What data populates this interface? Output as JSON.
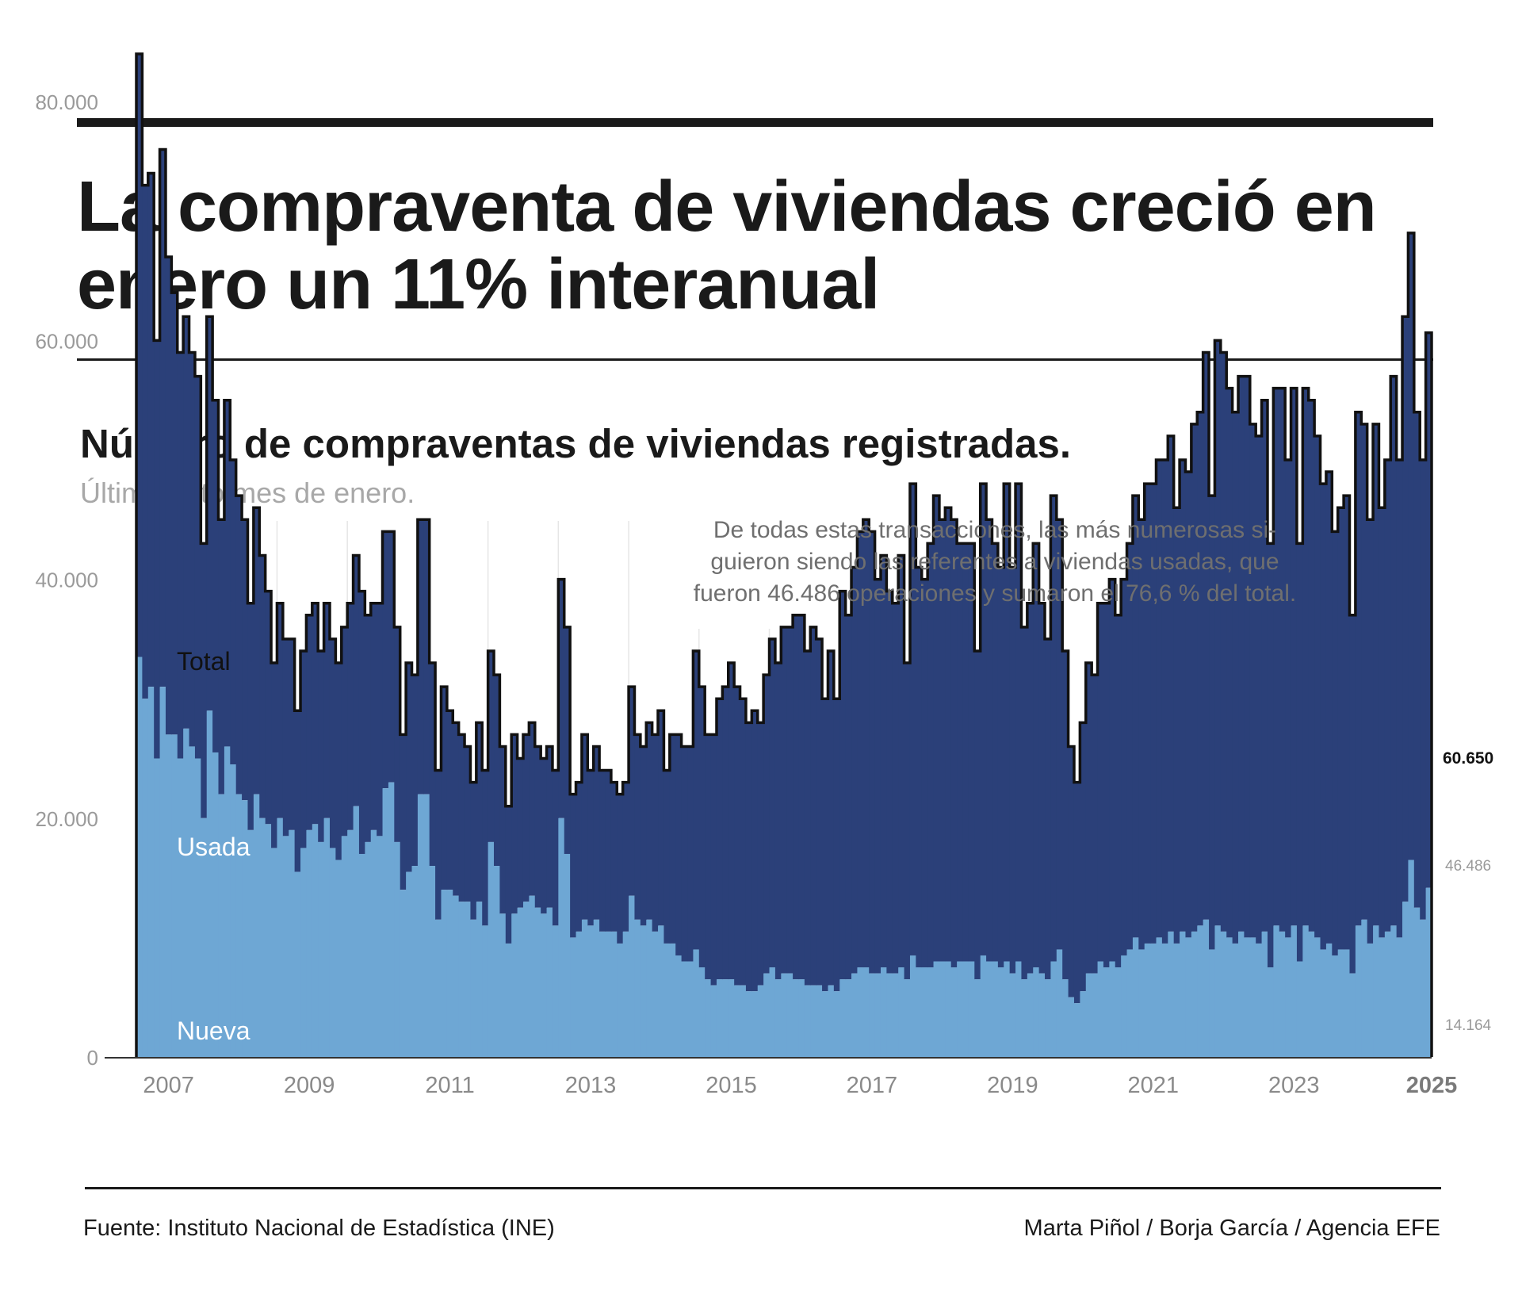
{
  "header": {
    "title": "La compraventa de viviendas creció en enero un 11% interanual",
    "subtitle": "Número de compraventas de viviendas registradas.",
    "subnote": "Último dato mes de enero."
  },
  "footer": {
    "source": "Fuente: Instituto Nacional de Estadística (INE)",
    "credits": "Marta Piñol / Borja García / Agencia EFE"
  },
  "colors": {
    "usada": "#2b4079",
    "nueva": "#6ea7d4",
    "outline": "#111111",
    "grid": "#e6e6e6",
    "axis_text": "#9a9a9a"
  },
  "chart_data": {
    "type": "area",
    "title": "Número de compraventas de viviendas registradas.",
    "subtitle": "Último dato mes de enero.",
    "x_unit": "month",
    "x_start": "2007-01",
    "x_end": "2025-01",
    "ylim": [
      0,
      90000
    ],
    "y_ticks": [
      {
        "value": 0,
        "label": "0"
      },
      {
        "value": 20000,
        "label": "20.000"
      },
      {
        "value": 40000,
        "label": "40.000"
      },
      {
        "value": 60000,
        "label": "60.000"
      },
      {
        "value": 80000,
        "label": "80.000"
      }
    ],
    "x_tick_labels": [
      "2007",
      "2009",
      "2011",
      "2013",
      "2015",
      "2017",
      "2019",
      "2021",
      "2023",
      "2025"
    ],
    "grid": "vertical",
    "series_labels": {
      "total": "Total",
      "usada": "Usada",
      "nueva": "Nueva"
    },
    "annotation": "De todas estas transacciones, las más numerosas si-\nguieron siendo las referentes a viviendas usadas, que\nfueron 46.486 operaciones y sumaron el 76,6 % del total.",
    "end_labels": {
      "total": "60.650",
      "usada": "46.486",
      "nueva": "14.164"
    },
    "series": [
      {
        "name": "Total",
        "values": [
          84000,
          73000,
          74000,
          60000,
          76000,
          67000,
          64000,
          59000,
          62000,
          59000,
          57000,
          43000,
          62000,
          55000,
          45000,
          55000,
          50000,
          47000,
          45000,
          38000,
          46000,
          42000,
          39000,
          33000,
          38000,
          35000,
          35000,
          29000,
          34000,
          37000,
          38000,
          34000,
          38000,
          35000,
          33000,
          36000,
          38000,
          42000,
          39000,
          37000,
          38000,
          38000,
          44000,
          44000,
          36000,
          27000,
          33000,
          32000,
          45000,
          45000,
          33000,
          24000,
          31000,
          29000,
          28000,
          27000,
          26000,
          23000,
          28000,
          24000,
          34000,
          32000,
          26000,
          21000,
          27000,
          25000,
          27000,
          28000,
          26000,
          25000,
          26000,
          24000,
          40000,
          36000,
          22000,
          23000,
          27000,
          24000,
          26000,
          24000,
          24000,
          23000,
          22000,
          23000,
          31000,
          27000,
          26000,
          28000,
          27000,
          29000,
          24000,
          27000,
          27000,
          26000,
          26000,
          34000,
          31000,
          27000,
          27000,
          30000,
          31000,
          33000,
          31000,
          30000,
          28000,
          29000,
          28000,
          32000,
          35000,
          33000,
          36000,
          36000,
          37000,
          37000,
          34000,
          36000,
          35000,
          30000,
          34000,
          30000,
          39000,
          37000,
          41000,
          44000,
          45000,
          44000,
          40000,
          42000,
          39000,
          38000,
          42000,
          33000,
          48000,
          41000,
          40000,
          43000,
          47000,
          45000,
          46000,
          45000,
          43000,
          43000,
          43000,
          34000,
          48000,
          45000,
          43000,
          41000,
          48000,
          41000,
          48000,
          36000,
          38000,
          43000,
          38000,
          35000,
          47000,
          45000,
          34000,
          26000,
          23000,
          28000,
          33000,
          32000,
          38000,
          38000,
          40000,
          37000,
          40000,
          43000,
          47000,
          45000,
          48000,
          48000,
          50000,
          50000,
          52000,
          46000,
          50000,
          49000,
          53000,
          54000,
          59000,
          47000,
          60000,
          59000,
          56000,
          54000,
          57000,
          57000,
          53000,
          52000,
          55000,
          43000,
          56000,
          56000,
          50000,
          56000,
          43000,
          56000,
          55000,
          52000,
          48000,
          49000,
          44000,
          46000,
          47000,
          37000,
          54000,
          53000,
          45000,
          53000,
          46000,
          50000,
          57000,
          50000,
          62000,
          69000,
          54000,
          50000,
          60650
        ]
      },
      {
        "name": "Nueva",
        "values": [
          33500,
          30000,
          31000,
          25000,
          31000,
          27000,
          27000,
          25000,
          27500,
          26000,
          25000,
          20000,
          29000,
          25500,
          22000,
          26000,
          24500,
          22000,
          21500,
          19000,
          22000,
          20000,
          19500,
          17500,
          20000,
          18500,
          19000,
          15500,
          17500,
          19000,
          19500,
          18000,
          20000,
          17500,
          16500,
          18500,
          19000,
          21000,
          17000,
          18000,
          19000,
          18500,
          22500,
          23000,
          18000,
          14000,
          15500,
          16000,
          22000,
          22000,
          16000,
          11500,
          14000,
          14000,
          13500,
          13000,
          13000,
          11500,
          13000,
          11000,
          18000,
          16000,
          12000,
          9500,
          12000,
          12500,
          13000,
          13500,
          12500,
          12000,
          12500,
          11000,
          20000,
          17000,
          10000,
          10500,
          11500,
          11000,
          11500,
          10500,
          10500,
          10500,
          9500,
          10500,
          13500,
          11500,
          11000,
          11500,
          10500,
          11000,
          9500,
          9500,
          8500,
          8000,
          8000,
          9000,
          7500,
          6500,
          6000,
          6500,
          6500,
          6500,
          6000,
          6000,
          5500,
          5500,
          6000,
          7000,
          7500,
          6500,
          7000,
          7000,
          6500,
          6500,
          6000,
          6000,
          6000,
          5500,
          6000,
          5500,
          6500,
          6500,
          7000,
          7500,
          7500,
          7000,
          7000,
          7500,
          7000,
          7000,
          7500,
          6500,
          8500,
          7500,
          7500,
          7500,
          8000,
          8000,
          8000,
          7500,
          8000,
          8000,
          8000,
          6500,
          8500,
          8000,
          8000,
          7500,
          8000,
          7000,
          8000,
          6500,
          7000,
          7500,
          7000,
          6500,
          8000,
          9000,
          6500,
          5000,
          4500,
          5500,
          7000,
          7000,
          8000,
          7500,
          8000,
          7500,
          8500,
          9000,
          10000,
          9000,
          9500,
          9500,
          10000,
          9500,
          10500,
          9500,
          10500,
          10000,
          10500,
          11000,
          11500,
          9000,
          11000,
          10500,
          10000,
          9500,
          10500,
          10000,
          10000,
          9500,
          10500,
          7500,
          11000,
          10500,
          10000,
          11000,
          8000,
          11000,
          10500,
          10000,
          9000,
          9500,
          8500,
          9000,
          9000,
          7000,
          11000,
          11500,
          9500,
          11000,
          10000,
          10500,
          11000,
          10000,
          13000,
          16500,
          12500,
          11500,
          14164
        ]
      }
    ]
  }
}
